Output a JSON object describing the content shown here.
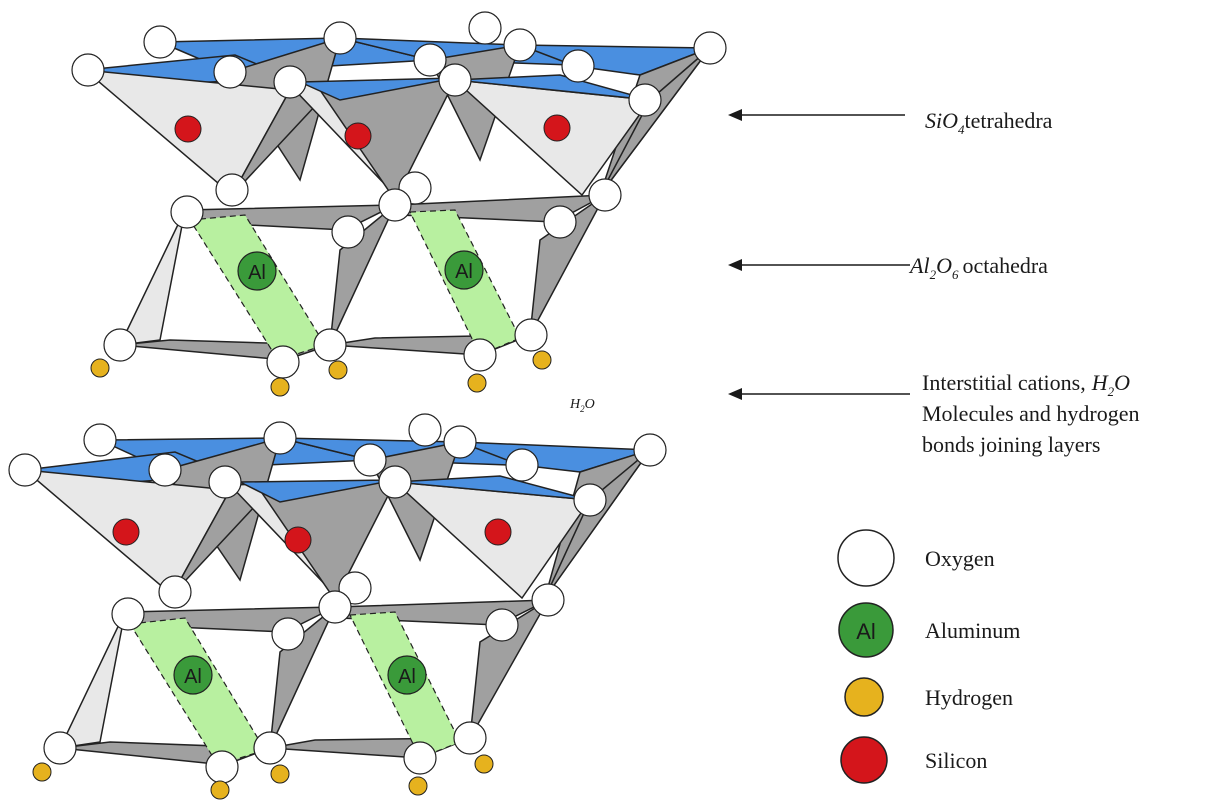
{
  "annotations": {
    "tetra": {
      "formula": {
        "base": "SiO",
        "sub": "4"
      },
      "suffix": "tetrahedra"
    },
    "octa": {
      "formula": {
        "a": "Al",
        "sub1": "2",
        "b": "O",
        "sub2": "6"
      },
      "suffix": "octahedra"
    },
    "interlayer": {
      "line1": "Interstitial cations,",
      "formula": {
        "a": "H",
        "sub": "2",
        "b": "O"
      },
      "line2": "Molecules and hydrogen",
      "line3": "bonds joining layers"
    },
    "water": {
      "a": "H",
      "sub": "2",
      "b": "O"
    }
  },
  "atom_label": "Al",
  "legend": {
    "oxygen": "Oxygen",
    "aluminum": "Aluminum",
    "hydrogen": "Hydrogen",
    "silicon": "Silicon",
    "al_symbol": "Al"
  },
  "colors": {
    "oxygen": "#ffffff",
    "aluminum": "#3a9a3a",
    "hydrogen": "#e6b21e",
    "silicon": "#d4151b",
    "octahedron": "#b8f0a0",
    "tetra_top": "#4a8fe0",
    "face_light": "#e8e8e8",
    "face_dark": "#a0a0a0"
  }
}
